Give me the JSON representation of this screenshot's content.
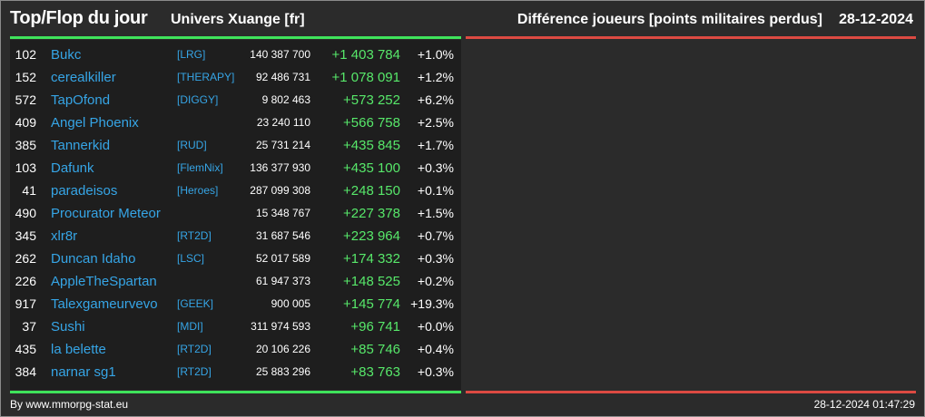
{
  "header": {
    "title": "Top/Flop du jour",
    "universe": "Univers Xuange [fr]",
    "subtitle": "Différence joueurs [points militaires perdus]",
    "date": "28-12-2024"
  },
  "colors": {
    "background": "#2b2b2b",
    "panel": "#1e1e1e",
    "top_accent": "#3fe35b",
    "flop_accent": "#dc4a42",
    "name_link": "#36a5e6",
    "positive_diff": "#57e86a"
  },
  "rows": [
    {
      "rank": "102",
      "name": "Bukc",
      "alliance": "[LRG]",
      "total": "140 387 700",
      "diff": "+1 403 784",
      "pct": "+1.0%"
    },
    {
      "rank": "152",
      "name": "cerealkiller",
      "alliance": "[THERAPY]",
      "total": "92 486 731",
      "diff": "+1 078 091",
      "pct": "+1.2%"
    },
    {
      "rank": "572",
      "name": "TapOfond",
      "alliance": "[DIGGY]",
      "total": "9 802 463",
      "diff": "+573 252",
      "pct": "+6.2%"
    },
    {
      "rank": "409",
      "name": "Angel Phoenix",
      "alliance": "",
      "total": "23 240 110",
      "diff": "+566 758",
      "pct": "+2.5%"
    },
    {
      "rank": "385",
      "name": "Tannerkid",
      "alliance": "[RUD]",
      "total": "25 731 214",
      "diff": "+435 845",
      "pct": "+1.7%"
    },
    {
      "rank": "103",
      "name": "Dafunk",
      "alliance": "[FlemNix]",
      "total": "136 377 930",
      "diff": "+435 100",
      "pct": "+0.3%"
    },
    {
      "rank": "41",
      "name": "paradeisos",
      "alliance": "[Heroes]",
      "total": "287 099 308",
      "diff": "+248 150",
      "pct": "+0.1%"
    },
    {
      "rank": "490",
      "name": "Procurator Meteor",
      "alliance": "",
      "total": "15 348 767",
      "diff": "+227 378",
      "pct": "+1.5%"
    },
    {
      "rank": "345",
      "name": "xlr8r",
      "alliance": "[RT2D]",
      "total": "31 687 546",
      "diff": "+223 964",
      "pct": "+0.7%"
    },
    {
      "rank": "262",
      "name": "Duncan Idaho",
      "alliance": "[LSC]",
      "total": "52 017 589",
      "diff": "+174 332",
      "pct": "+0.3%"
    },
    {
      "rank": "226",
      "name": "AppleTheSpartan",
      "alliance": "",
      "total": "61 947 373",
      "diff": "+148 525",
      "pct": "+0.2%"
    },
    {
      "rank": "917",
      "name": "Talexgameurvevo",
      "alliance": "[GEEK]",
      "total": "900 005",
      "diff": "+145 774",
      "pct": "+19.3%"
    },
    {
      "rank": "37",
      "name": "Sushi",
      "alliance": "[MDI]",
      "total": "311 974 593",
      "diff": "+96 741",
      "pct": "+0.0%"
    },
    {
      "rank": "435",
      "name": "la belette",
      "alliance": "[RT2D]",
      "total": "20 106 226",
      "diff": "+85 746",
      "pct": "+0.4%"
    },
    {
      "rank": "384",
      "name": "narnar sg1",
      "alliance": "[RT2D]",
      "total": "25 883 296",
      "diff": "+83 763",
      "pct": "+0.3%"
    }
  ],
  "footer": {
    "credit": "By www.mmorpg-stat.eu",
    "timestamp": "28-12-2024 01:47:29"
  }
}
